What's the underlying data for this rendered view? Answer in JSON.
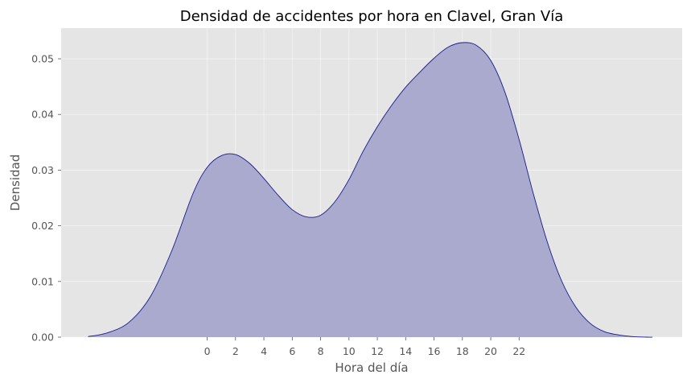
{
  "chart_data": {
    "type": "area",
    "title": "Densidad de accidentes por hora en Clavel, Gran Vía",
    "xlabel": "Hora del día",
    "ylabel": "Densidad",
    "x_ticks": [
      0,
      2,
      4,
      6,
      8,
      10,
      12,
      14,
      16,
      18,
      20,
      22
    ],
    "y_ticks": [
      "0.00",
      "0.01",
      "0.02",
      "0.03",
      "0.04",
      "0.05"
    ],
    "xlim": [
      -10.3,
      33.5
    ],
    "ylim": [
      0,
      0.0555
    ],
    "grid": true,
    "series": [
      {
        "fill_color": "#aaaacf",
        "line_color": "#1a1a8c",
        "x": [
          -8.4,
          -7,
          -5.5,
          -4,
          -2.5,
          -1,
          0,
          1,
          2,
          3,
          4,
          5,
          6,
          7,
          8,
          9,
          10,
          11,
          12,
          13,
          14,
          15,
          16,
          17,
          18,
          19,
          20,
          21,
          22,
          23,
          24,
          25,
          26,
          27,
          28,
          29,
          30,
          31,
          31.4
        ],
        "y": [
          0.0001,
          0.0008,
          0.0027,
          0.0073,
          0.0155,
          0.0258,
          0.0305,
          0.0326,
          0.0328,
          0.0312,
          0.0285,
          0.0255,
          0.0229,
          0.0216,
          0.0219,
          0.0243,
          0.0283,
          0.0334,
          0.0378,
          0.0416,
          0.0449,
          0.0476,
          0.0501,
          0.0521,
          0.0529,
          0.0524,
          0.0497,
          0.044,
          0.0355,
          0.0258,
          0.017,
          0.0101,
          0.0054,
          0.0025,
          0.001,
          0.0004,
          0.0001,
          0.0,
          0.0
        ]
      }
    ]
  }
}
